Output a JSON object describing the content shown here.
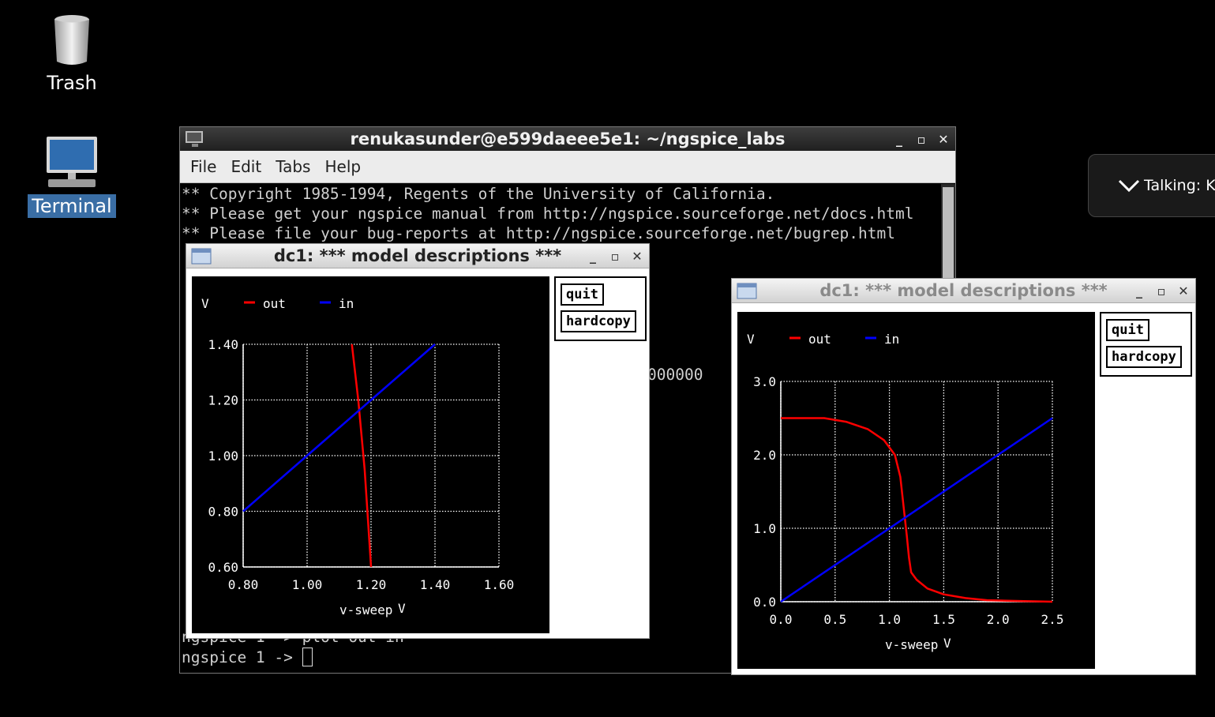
{
  "desktop": {
    "icons": [
      {
        "label": "Trash"
      },
      {
        "label": "Terminal"
      }
    ]
  },
  "terminal": {
    "title": "renukasunder@e599daeee5e1: ~/ngspice_labs",
    "menu": [
      "File",
      "Edit",
      "Tabs",
      "Help"
    ],
    "lines": [
      "** Copyright 1985-1994, Regents of the University of California.",
      "** Please get your ngspice manual from http://ngspice.sourceforge.net/docs.html",
      "** Please file your bug-reports at http://ngspice.sourceforge.net/bugrep.html"
    ],
    "partial_line": "000000",
    "prev_prompt": "ngspice 1 -> plot out in",
    "prompt": "ngspice 1 -> "
  },
  "plot1": {
    "title": "dc1: *** model descriptions ***",
    "buttons": {
      "quit": "quit",
      "hardcopy": "hardcopy"
    },
    "chart_data": {
      "type": "line",
      "ylabel": "V",
      "xlabel": "v-sweep",
      "xunit": "V",
      "xlim": [
        0.8,
        1.6
      ],
      "ylim": [
        0.6,
        1.4
      ],
      "xticks": [
        "0.80",
        "1.00",
        "1.20",
        "1.40",
        "1.60"
      ],
      "yticks": [
        "0.60",
        "0.80",
        "1.00",
        "1.20",
        "1.40"
      ],
      "grid": true,
      "legend_position": "top-left",
      "series": [
        {
          "name": "out",
          "color": "#ff0000",
          "x": [
            1.14,
            1.16,
            1.18,
            1.2
          ],
          "y": [
            1.4,
            1.2,
            0.95,
            0.6
          ]
        },
        {
          "name": "in",
          "color": "#0000ff",
          "x": [
            0.8,
            1.0,
            1.2,
            1.4
          ],
          "y": [
            0.8,
            1.0,
            1.2,
            1.4
          ]
        }
      ]
    }
  },
  "plot2": {
    "title": "dc1: *** model descriptions ***",
    "buttons": {
      "quit": "quit",
      "hardcopy": "hardcopy"
    },
    "chart_data": {
      "type": "line",
      "ylabel": "V",
      "xlabel": "v-sweep",
      "xunit": "V",
      "xlim": [
        0,
        2.5
      ],
      "ylim": [
        0,
        3
      ],
      "xticks": [
        "0.0",
        "0.5",
        "1.0",
        "1.5",
        "2.0",
        "2.5"
      ],
      "yticks": [
        "0.0",
        "1.0",
        "2.0",
        "3.0"
      ],
      "grid": true,
      "legend_position": "top-left",
      "series": [
        {
          "name": "out",
          "color": "#ff0000",
          "x": [
            0,
            0.4,
            0.6,
            0.8,
            0.95,
            1.05,
            1.1,
            1.13,
            1.16,
            1.18,
            1.2,
            1.25,
            1.35,
            1.5,
            1.7,
            1.9,
            2.2,
            2.5
          ],
          "y": [
            2.5,
            2.5,
            2.45,
            2.35,
            2.2,
            2.0,
            1.7,
            1.3,
            0.9,
            0.6,
            0.4,
            0.3,
            0.18,
            0.1,
            0.05,
            0.02,
            0.01,
            0.0
          ]
        },
        {
          "name": "in",
          "color": "#0000ff",
          "x": [
            0,
            2.5
          ],
          "y": [
            0,
            2.5
          ]
        }
      ]
    }
  },
  "toast": {
    "text": "Talking: Ku"
  }
}
